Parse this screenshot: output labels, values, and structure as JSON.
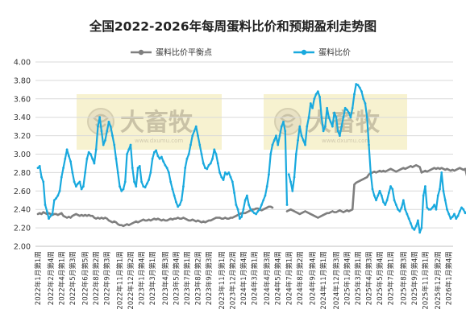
{
  "chart_data": {
    "type": "line",
    "title": "全国2022-2026年每周蛋料比价和预期盈利走势图",
    "ylim": [
      2.0,
      4.0
    ],
    "yticks": [
      "2.00",
      "2.20",
      "2.40",
      "2.60",
      "2.80",
      "3.00",
      "3.20",
      "3.40",
      "3.60",
      "3.80",
      "4.00"
    ],
    "grid": true,
    "legend_position": "top-center",
    "watermark": {
      "brand": "大畜牧",
      "site": "www.dxumu.com"
    },
    "x_labels": [
      "2022年1月第1周",
      "2022年2月第4周",
      "2022年4月第1周",
      "2022年5月第3周",
      "2022年6月第5周",
      "2022年8月第2周",
      "2022年9月第3周",
      "2022年11月第1周",
      "2022年12月第2周",
      "2023年1月第4周",
      "2023年3月第1周",
      "2023年4月第3周",
      "2023年5月第4周",
      "2023年7月第1周",
      "2023年8月第2周",
      "2023年9月第3周",
      "2023年11月第1周",
      "2023年12月第2周",
      "2024年1月第4周",
      "2024年3月第1周",
      "2024年4月第3周",
      "2024年5月第4周",
      "2024年7月第1周",
      "2024年8月第2周",
      "2024年9月第4周",
      "2024年11月第1周",
      "2024年12月第3周",
      "2025年1月第4周",
      "2025年3月第1周",
      "2025年4月第3周",
      "2025年5月第4周",
      "2025年7月第1周",
      "2025年8月第3周",
      "2025年9月第4周",
      "2025年11月第1周",
      "2025年12月第2周",
      "2026年1月第4周"
    ],
    "x_label_week_index": [
      0,
      7,
      13,
      19,
      26,
      32,
      38,
      45,
      51,
      57,
      63,
      70,
      76,
      82,
      88,
      94,
      101,
      107,
      113,
      119,
      126,
      132,
      138,
      144,
      151,
      157,
      164,
      170,
      176,
      182,
      188,
      194,
      201,
      207,
      213,
      220,
      226
    ],
    "series": [
      {
        "name": "蛋料比价平衡点",
        "color": "#7f7f7f",
        "segments": [
          {
            "start_week": 0,
            "values": [
              2.35,
              2.36,
              2.35,
              2.37,
              2.36,
              2.35,
              2.36,
              2.35,
              2.34,
              2.35,
              2.35,
              2.34,
              2.35,
              2.36,
              2.33,
              2.32,
              2.31,
              2.32,
              2.31,
              2.33,
              2.34,
              2.35,
              2.34,
              2.33,
              2.34,
              2.33,
              2.34,
              2.33,
              2.34,
              2.33,
              2.33,
              2.31,
              2.3,
              2.31,
              2.3,
              2.31,
              2.3,
              2.31,
              2.3,
              2.28,
              2.27,
              2.26,
              2.27,
              2.26,
              2.24,
              2.23,
              2.23,
              2.22,
              2.23,
              2.24,
              2.23,
              2.24,
              2.25,
              2.26,
              2.27,
              2.26,
              2.27,
              2.28,
              2.29,
              2.28,
              2.28,
              2.29,
              2.28,
              2.29,
              2.3,
              2.29,
              2.3,
              2.29,
              2.28,
              2.29,
              2.28,
              2.28,
              2.29,
              2.3,
              2.29,
              2.3,
              2.3,
              2.31,
              2.3,
              2.3,
              2.31,
              2.3,
              2.29,
              2.28,
              2.28,
              2.29,
              2.28,
              2.27,
              2.28,
              2.27,
              2.26,
              2.27,
              2.26,
              2.27,
              2.28,
              2.28,
              2.29,
              2.3,
              2.31,
              2.31,
              2.31,
              2.3,
              2.3,
              2.31,
              2.3,
              2.3,
              2.31,
              2.31,
              2.32,
              2.33,
              2.34,
              2.35,
              2.36,
              2.36,
              2.36,
              2.37,
              2.38,
              2.39,
              2.4,
              2.4,
              2.41,
              2.41,
              2.4,
              2.39,
              2.4,
              2.41,
              2.42,
              2.43,
              2.43,
              2.42
            ]
          },
          {
            "start_week": 137,
            "values": [
              2.38,
              2.39,
              2.4,
              2.39,
              2.38,
              2.37,
              2.36,
              2.35,
              2.36,
              2.37,
              2.38,
              2.37,
              2.36,
              2.35,
              2.34,
              2.33,
              2.32,
              2.31,
              2.32,
              2.33,
              2.34,
              2.35,
              2.36,
              2.36,
              2.37,
              2.38,
              2.37,
              2.37,
              2.38,
              2.39,
              2.38,
              2.37,
              2.38,
              2.39,
              2.38,
              2.39,
              2.4,
              2.67,
              2.69,
              2.7,
              2.71,
              2.72,
              2.73,
              2.74,
              2.75,
              2.78,
              2.79,
              2.8,
              2.81,
              2.8,
              2.81,
              2.82,
              2.81,
              2.82,
              2.81,
              2.82,
              2.83,
              2.84,
              2.83,
              2.82,
              2.81,
              2.82,
              2.83,
              2.84,
              2.85,
              2.84,
              2.85,
              2.86,
              2.87,
              2.86,
              2.87,
              2.88,
              2.87,
              2.86,
              2.8,
              2.81,
              2.82,
              2.81,
              2.82,
              2.83,
              2.84,
              2.85,
              2.84,
              2.85,
              2.84,
              2.85,
              2.84,
              2.83,
              2.84,
              2.83,
              2.82,
              2.83,
              2.82,
              2.83,
              2.84,
              2.85,
              2.84,
              2.83,
              2.84,
              2.76
            ]
          }
        ]
      },
      {
        "name": "蛋料比价",
        "color": "#19a9de",
        "segments": [
          {
            "start_week": 0,
            "values": [
              2.85,
              2.87,
              2.75,
              2.7,
              2.45,
              2.38,
              2.3,
              2.33,
              2.35,
              2.5,
              2.52,
              2.55,
              2.6,
              2.75,
              2.85,
              2.95,
              3.05,
              2.98,
              2.92,
              2.8,
              2.7,
              2.65,
              2.68,
              2.7,
              2.62,
              2.65,
              2.8,
              2.95,
              3.02,
              3.0,
              2.95,
              2.9,
              3.05,
              3.3,
              3.4,
              3.25,
              3.1,
              3.15,
              3.25,
              3.35,
              3.3,
              3.2,
              3.1,
              2.95,
              2.8,
              2.65,
              2.6,
              2.62,
              2.7,
              3.0,
              3.05,
              3.1,
              2.85,
              2.7,
              2.65,
              2.85,
              2.87,
              2.7,
              2.65,
              2.64,
              2.68,
              2.72,
              2.8,
              2.95,
              3.02,
              3.04,
              2.98,
              2.95,
              2.97,
              2.92,
              2.88,
              2.85,
              2.8,
              2.7,
              2.62,
              2.55,
              2.48,
              2.43,
              2.45,
              2.5,
              2.65,
              2.85,
              2.95,
              3.0,
              3.1,
              3.2,
              3.25,
              3.3,
              3.2,
              3.1,
              3.0,
              2.9,
              2.85,
              2.84,
              2.88,
              2.9,
              2.95,
              3.05,
              3.0,
              2.9,
              2.8,
              2.75,
              2.72,
              2.8,
              2.78,
              2.8,
              2.75,
              2.7,
              2.58,
              2.45,
              2.4,
              2.3,
              2.32,
              2.4,
              2.5,
              2.55,
              2.45,
              2.4,
              2.38,
              2.36,
              2.35,
              2.38,
              2.4,
              2.45,
              2.5,
              2.55,
              2.65,
              2.78,
              3.0,
              3.1,
              3.15,
              3.2,
              3.1,
              3.2,
              3.3,
              3.35,
              3.25,
              2.45
            ]
          },
          {
            "start_week": 138,
            "values": [
              2.78,
              2.7,
              2.6,
              2.75,
              3.0,
              3.15,
              3.3,
              3.2,
              3.15,
              3.1,
              3.3,
              3.4,
              3.55,
              3.5,
              3.6,
              3.65,
              3.68,
              3.62,
              3.4,
              3.25,
              3.3,
              3.5,
              3.4,
              3.35,
              3.3,
              3.45,
              3.4,
              3.25,
              3.2,
              3.3,
              3.4,
              3.5,
              3.48,
              3.45,
              3.4,
              3.5,
              3.65,
              3.76,
              3.75,
              3.72,
              3.68,
              3.6,
              3.55,
              3.4,
              3.1,
              2.8,
              2.62,
              2.55,
              2.5,
              2.55,
              2.6,
              2.55,
              2.48,
              2.45,
              2.5,
              2.58,
              2.65,
              2.62,
              2.5,
              2.45,
              2.4,
              2.38,
              2.42,
              2.5,
              2.4,
              2.35,
              2.3,
              2.25,
              2.2,
              2.18,
              2.22,
              2.28,
              2.15,
              2.2,
              2.55,
              2.65,
              2.42,
              2.4,
              2.4,
              2.42,
              2.45,
              2.4,
              2.55,
              2.62,
              2.8,
              2.6,
              2.5,
              2.4,
              2.35,
              2.3,
              2.32,
              2.35,
              2.3,
              2.33,
              2.38,
              2.42,
              2.4,
              2.36,
              2.38,
              2.32,
              2.4,
              2.5,
              2.6,
              2.9,
              2.98
            ]
          }
        ]
      }
    ]
  }
}
